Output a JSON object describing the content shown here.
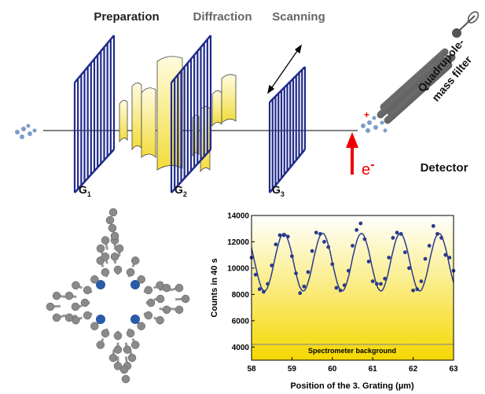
{
  "diagram": {
    "stages": [
      "Preparation",
      "Diffraction",
      "Scanning"
    ],
    "gratings": [
      {
        "letter": "G",
        "index": "1"
      },
      {
        "letter": "G",
        "index": "2"
      },
      {
        "letter": "G",
        "index": "3"
      }
    ],
    "electron": {
      "symbol": "e",
      "charge": "-"
    },
    "ion_charge": "+",
    "filter_label": [
      "Quadrupole-",
      "mass filter"
    ],
    "detector": "Detector"
  },
  "chart_data": {
    "type": "scatter",
    "x_label": "Position of the  3. Grating (µm)",
    "y_label": "Counts in 40 s",
    "xlim": [
      58,
      63
    ],
    "xticks": [
      58,
      59,
      60,
      61,
      62,
      63
    ],
    "ylim": [
      3000,
      14000
    ],
    "yticks": [
      4000,
      6000,
      8000,
      10000,
      12000,
      14000
    ],
    "points": {
      "color": "#2b3a8f",
      "x": [
        58,
        58.1,
        58.2,
        58.3,
        58.4,
        58.5,
        58.6,
        58.7,
        58.8,
        58.9,
        59,
        59.1,
        59.2,
        59.3,
        59.4,
        59.5,
        59.6,
        59.7,
        59.8,
        59.9,
        60,
        60.1,
        60.2,
        60.3,
        60.4,
        60.5,
        60.6,
        60.7,
        60.8,
        60.9,
        61,
        61.1,
        61.2,
        61.3,
        61.4,
        61.5,
        61.6,
        61.7,
        61.8,
        61.9,
        62,
        62.1,
        62.2,
        62.3,
        62.4,
        62.5,
        62.6,
        62.7,
        62.8,
        62.9,
        63
      ],
      "values": [
        10800,
        9500,
        8400,
        8200,
        8800,
        10200,
        11800,
        12500,
        12500,
        12400,
        10900,
        9600,
        8100,
        8600,
        9700,
        11300,
        12700,
        12600,
        12000,
        11600,
        10300,
        8500,
        8300,
        8700,
        9800,
        11700,
        12900,
        13400,
        12200,
        10500,
        9000,
        8800,
        8800,
        9200,
        10800,
        12300,
        12700,
        12600,
        11200,
        10000,
        8300,
        8400,
        9000,
        10700,
        11700,
        13200,
        12600,
        12300,
        11000,
        10800,
        9800
      ]
    },
    "fit": {
      "color": "#2b3a8f",
      "x": [
        58,
        58.12,
        58.24,
        58.36,
        58.48,
        58.6,
        58.72,
        58.84,
        58.96,
        59.08,
        59.2,
        59.32,
        59.44,
        59.56,
        59.68,
        59.8,
        59.92,
        60.04,
        60.16,
        60.28,
        60.4,
        60.52,
        60.64,
        60.76,
        60.88,
        61,
        61.12,
        61.24,
        61.36,
        61.48,
        61.6,
        61.72,
        61.84,
        61.96,
        62.08,
        62.2,
        62.32,
        62.44,
        62.56,
        62.68,
        62.8,
        62.92,
        63
      ],
      "values": [
        11550,
        9880,
        8545,
        8325,
        9350,
        11020,
        12355,
        12575,
        11550,
        9880,
        8545,
        8325,
        9350,
        11020,
        12355,
        12575,
        11550,
        9880,
        8545,
        8325,
        9350,
        11020,
        12355,
        12575,
        11550,
        9880,
        8545,
        8325,
        9350,
        11020,
        12355,
        12575,
        11550,
        9880,
        8545,
        8325,
        9350,
        11020,
        12355,
        12575,
        11550,
        9880,
        8894
      ]
    },
    "background": {
      "value": 4200,
      "label": "Spectrometer background",
      "color": "#888888"
    }
  }
}
